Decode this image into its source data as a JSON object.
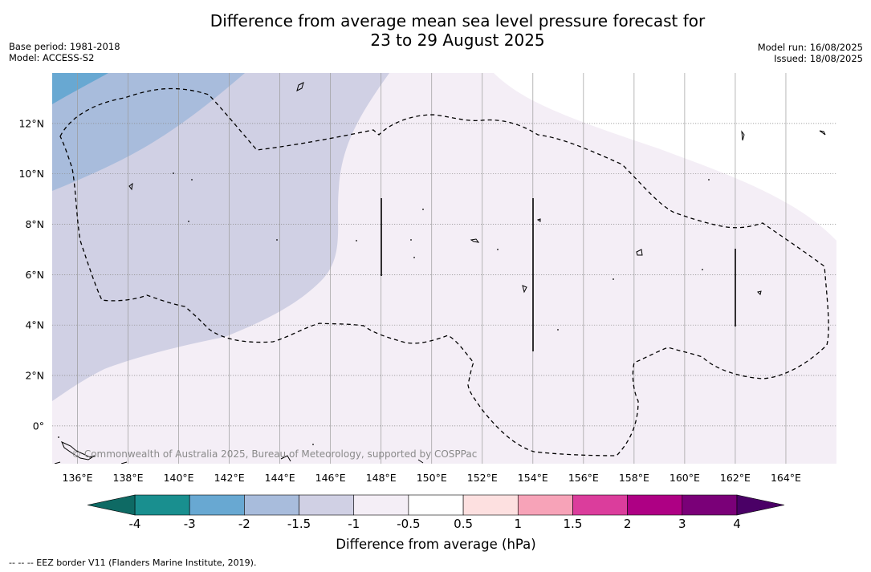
{
  "title": {
    "line1": "Difference from average mean sea level pressure forecast for",
    "line2": "23 to 29 August 2025"
  },
  "meta_left": {
    "base_period": "Base period: 1981-2018",
    "model": "Model: ACCESS-S2"
  },
  "meta_right": {
    "model_run": "Model run: 16/08/2025",
    "issued": "Issued: 18/08/2025"
  },
  "map": {
    "lon_range": [
      135,
      166
    ],
    "lat_range": [
      -1.5,
      14
    ],
    "lon_ticks": [
      "136°E",
      "138°E",
      "140°E",
      "142°E",
      "144°E",
      "146°E",
      "148°E",
      "150°E",
      "152°E",
      "154°E",
      "156°E",
      "158°E",
      "160°E",
      "162°E",
      "164°E"
    ],
    "lat_ticks": [
      "12°N",
      "10°N",
      "8°N",
      "6°N",
      "4°N",
      "2°N",
      "0°"
    ],
    "gridlines": true,
    "copyright": "© Commonwealth of Australia 2025, Bureau of Meteorology, supported by COSPPac",
    "field_colors": {
      "minus_3_to_minus_2": "#68a8d2",
      "minus_2_to_minus_1_5": "#a8bcdc",
      "minus_1_5_to_minus_1": "#d0d0e4",
      "minus_1_to_minus_0_5": "#f4eef6",
      "minus_0_5_to_0_5": "#ffffff"
    }
  },
  "colorbar": {
    "title": "Difference from average (hPa)",
    "labels": [
      "-4",
      "-3",
      "-2",
      "-1.5",
      "-1",
      "-0.5",
      "0.5",
      "1",
      "1.5",
      "2",
      "3",
      "4"
    ],
    "colors": [
      "#198f8f",
      "#68a8d2",
      "#a8bcdc",
      "#d0d0e4",
      "#f4eef6",
      "#ffffff",
      "#fde0e0",
      "#f7a3b8",
      "#db3d9c",
      "#ae0084",
      "#7a0078"
    ],
    "under_color": "#0e6a64",
    "over_color": "#4a0066"
  },
  "footnote": "-- -- -- EEZ border V11 (Flanders Marine Institute, 2019)."
}
